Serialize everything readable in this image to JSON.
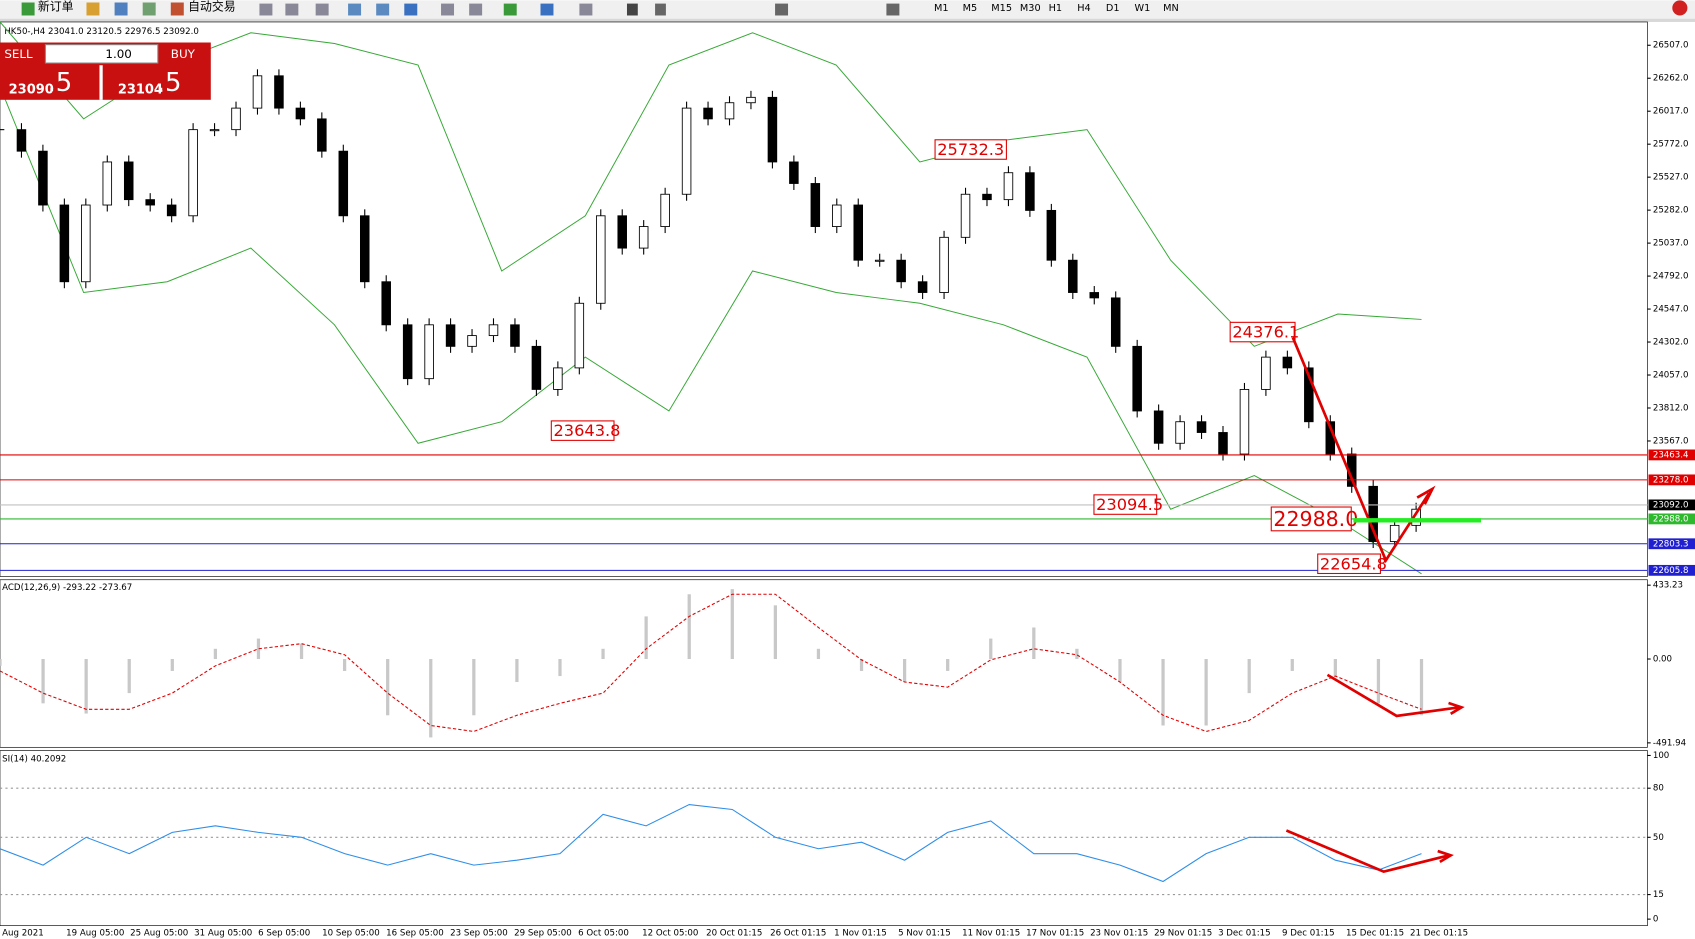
{
  "toolbar": {
    "new_order": "新订单",
    "auto_trade": "自动交易",
    "timeframes": [
      "M1",
      "M5",
      "M15",
      "M30",
      "H1",
      "H4",
      "D1",
      "W1",
      "MN"
    ]
  },
  "trade_panel": {
    "sell": "SELL",
    "buy": "BUY",
    "lots": "1.00",
    "bid_main": "23090",
    "bid_frac": ".5",
    "ask_main": "23104",
    "ask_frac": ".5"
  },
  "main_chart": {
    "info": "HK50-,H4  23041.0 23120.5 22976.5 23092.0",
    "ylim": [
      22560,
      26680
    ],
    "yticks": [
      {
        "value": 26507,
        "label": "26507.0"
      },
      {
        "value": 26262,
        "label": "26262.0"
      },
      {
        "value": 26017,
        "label": "26017.0"
      },
      {
        "value": 25772,
        "label": "25772.0"
      },
      {
        "value": 25527,
        "label": "25527.0"
      },
      {
        "value": 25282,
        "label": "25282.0"
      },
      {
        "value": 25037,
        "label": "25037.0"
      },
      {
        "value": 24792,
        "label": "24792.0"
      },
      {
        "value": 24547,
        "label": "24547.0"
      },
      {
        "value": 24302,
        "label": "24302.0"
      },
      {
        "value": 24057,
        "label": "24057.0"
      },
      {
        "value": 23812,
        "label": "23812.0"
      },
      {
        "value": 23567,
        "label": "23567.0"
      }
    ],
    "closes": [
      25880,
      25720,
      25320,
      24750,
      25320,
      25640,
      25360,
      25320,
      25240,
      25880,
      25880,
      26040,
      26280,
      26040,
      25960,
      25720,
      25240,
      24750,
      24430,
      24030,
      24430,
      24270,
      24350,
      24430,
      24270,
      23950,
      24110,
      24590,
      25240,
      25000,
      25160,
      25400,
      26040,
      25960,
      26080,
      26120,
      25640,
      25480,
      25160,
      25320,
      24910,
      24910,
      24750,
      24670,
      25080,
      25400,
      25360,
      25560,
      25280,
      24910,
      24670,
      24630,
      24270,
      23790,
      23550,
      23710,
      23630,
      23470,
      23950,
      24190,
      24110,
      23710,
      23470,
      23230,
      22820,
      22940,
      23060
    ],
    "bb_upper": [
      26680,
      25960,
      26360,
      26600,
      26520,
      26360,
      24830,
      25240,
      26360,
      26600,
      26360,
      25640,
      25800,
      25880,
      24910,
      24270,
      24510,
      24470
    ],
    "bb_lower": [
      26200,
      24670,
      24750,
      25000,
      24430,
      23550,
      23710,
      24190,
      23790,
      24830,
      24670,
      24590,
      24430,
      24190,
      23060,
      23310,
      22980,
      22580
    ],
    "levels": [
      {
        "value": 23463.4,
        "label": "23463.4",
        "color": "#e00000"
      },
      {
        "value": 23278,
        "label": "23278.0",
        "color": "#e00000"
      },
      {
        "value": 23092,
        "label": "23092.0",
        "color": "#000000"
      },
      {
        "value": 22988,
        "label": "22988.0",
        "color": "#2db82d"
      },
      {
        "value": 22803.3,
        "label": "22803.3",
        "color": "#2020d0"
      },
      {
        "value": 22605.8,
        "label": "22605.8",
        "color": "#2020d0"
      }
    ],
    "annotations": [
      {
        "value": 25732.3,
        "label": "25732.3"
      },
      {
        "value": 23643.8,
        "label": "23643.8"
      },
      {
        "value": 23094.5,
        "label": "23094.5"
      },
      {
        "value": 24376.1,
        "label": "24376.1"
      },
      {
        "value": 22988,
        "label": "22988.0"
      },
      {
        "value": 22654.8,
        "label": "22654.8"
      }
    ],
    "x_labels": [
      "Aug 2021",
      "19 Aug 05:00",
      "25 Aug 05:00",
      "31 Aug 05:00",
      "6 Sep 05:00",
      "10 Sep 05:00",
      "16 Sep 05:00",
      "23 Sep 05:00",
      "29 Sep 05:00",
      "6 Oct 05:00",
      "12 Oct 05:00",
      "20 Oct 01:15",
      "26 Oct 01:15",
      "1 Nov 01:15",
      "5 Nov 01:15",
      "11 Nov 01:15",
      "17 Nov 01:15",
      "23 Nov 01:15",
      "29 Nov 01:15",
      "3 Dec 01:15",
      "9 Dec 01:15",
      "15 Dec 01:15",
      "21 Dec 01:15"
    ]
  },
  "macd": {
    "label": "ACD(12,26,9) -293.22 -273.67",
    "ylim": [
      -518,
      465
    ],
    "yticks": [
      {
        "value": 433.23,
        "label": "433.23"
      },
      {
        "value": 0,
        "label": "0.00"
      },
      {
        "value": -491.94,
        "label": "-491.94"
      }
    ],
    "histogram": [
      -40,
      -260,
      -320,
      -200,
      -70,
      60,
      120,
      90,
      -70,
      -330,
      -460,
      -330,
      -135,
      -100,
      60,
      250,
      380,
      410,
      315,
      60,
      -70,
      -135,
      -70,
      120,
      185,
      60,
      -135,
      -390,
      -390,
      -200,
      -70,
      -100,
      -260,
      -330
    ],
    "signal": [
      -70,
      -200,
      -295,
      -295,
      -200,
      -40,
      60,
      90,
      25,
      -200,
      -390,
      -425,
      -330,
      -260,
      -200,
      60,
      250,
      380,
      380,
      185,
      -5,
      -135,
      -165,
      -5,
      60,
      25,
      -135,
      -330,
      -425,
      -360,
      -200,
      -100,
      -200,
      -295
    ]
  },
  "rsi": {
    "label": "SI(14) 40.2092",
    "ylim": [
      -4,
      103
    ],
    "yticks": [
      100,
      80,
      50,
      15,
      0
    ],
    "levels": [
      80,
      50,
      15
    ],
    "values": [
      43,
      33,
      50,
      40,
      53,
      57,
      53,
      50,
      40,
      33,
      40,
      33,
      36,
      40,
      64,
      57,
      70,
      67,
      50,
      43,
      47,
      36,
      53,
      60,
      40,
      40,
      33,
      23,
      40,
      50,
      50,
      36,
      30,
      40
    ]
  }
}
